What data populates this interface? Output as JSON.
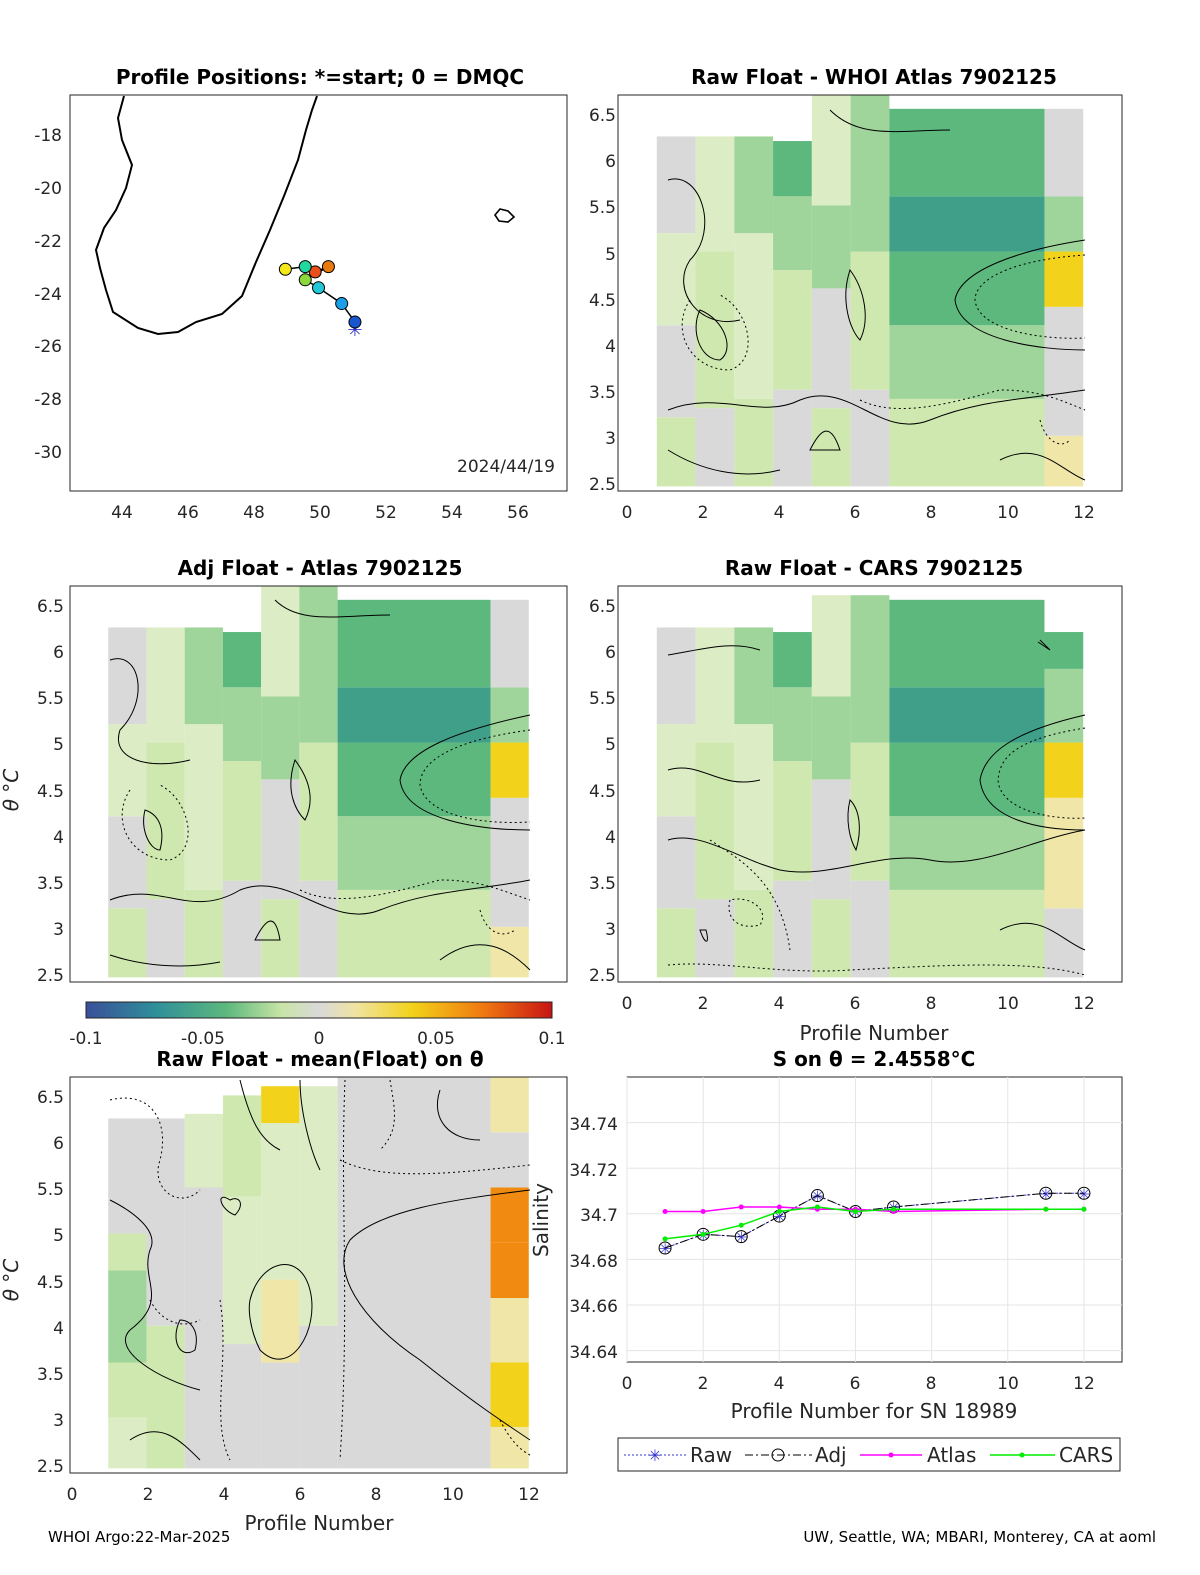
{
  "panels": {
    "map": {
      "title": "Profile Positions: *=start; 0 = DMQC",
      "date": "2024/44/19",
      "xticks": [
        "44",
        "46",
        "48",
        "50",
        "52",
        "54",
        "56"
      ],
      "yticks": [
        "-18",
        "-20",
        "-22",
        "-24",
        "-26",
        "-28",
        "-30"
      ]
    },
    "whoi": {
      "title": "Raw Float - WHOI Atlas  7902125",
      "xticks": [
        "0",
        "2",
        "4",
        "6",
        "8",
        "10",
        "12"
      ],
      "yticks": [
        "6.5",
        "6",
        "5.5",
        "5",
        "4.5",
        "4",
        "3.5",
        "3",
        "2.5"
      ]
    },
    "adj": {
      "title": "Adj Float - Atlas  7902125",
      "ylabel": "θ °C",
      "xticks": [
        "0",
        "2",
        "4",
        "6",
        "8",
        "10",
        "12"
      ],
      "yticks": [
        "6.5",
        "6",
        "5.5",
        "5",
        "4.5",
        "4",
        "3.5",
        "3",
        "2.5"
      ]
    },
    "cars": {
      "title": "Raw Float - CARS  7902125",
      "xlabel": "Profile Number",
      "xticks": [
        "0",
        "2",
        "4",
        "6",
        "8",
        "10",
        "12"
      ],
      "yticks": [
        "6.5",
        "6",
        "5.5",
        "5",
        "4.5",
        "4",
        "3.5",
        "3",
        "2.5"
      ]
    },
    "mean": {
      "title": "Raw Float - mean(Float) on θ",
      "xlabel": "Profile Number",
      "ylabel": "θ °C",
      "xticks": [
        "0",
        "2",
        "4",
        "6",
        "8",
        "10",
        "12"
      ],
      "yticks": [
        "6.5",
        "6",
        "5.5",
        "5",
        "4.5",
        "4",
        "3.5",
        "3",
        "2.5"
      ]
    },
    "sal": {
      "title": "S on θ = 2.4558°C",
      "xlabel": "Profile Number for SN 18989",
      "ylabel": "Salinity",
      "xticks": [
        "0",
        "2",
        "4",
        "6",
        "8",
        "10",
        "12"
      ],
      "yticks": [
        "34.74",
        "34.72",
        "34.7",
        "34.68",
        "34.66",
        "34.64"
      ]
    }
  },
  "colorbar": {
    "ticks": [
      "-0.1",
      "-0.05",
      "0",
      "0.05",
      "0.1"
    ]
  },
  "footer": {
    "left": "WHOI Argo:22-Mar-2025",
    "right": "UW, Seattle, WA; MBARI, Monterey, CA at aoml"
  },
  "colors": {
    "raw": "#3333cc",
    "adj": "#000000",
    "atlas": "#ff00ff",
    "cars": "#00ee00"
  },
  "chart_data": [
    {
      "type": "scatter",
      "name": "map",
      "xlim": [
        42.5,
        57.5
      ],
      "ylim": [
        -31.5,
        -16.5
      ],
      "positions": [
        {
          "lon": 51.1,
          "lat": -25.4
        },
        {
          "lon": 51.1,
          "lat": -25.1
        },
        {
          "lon": 50.7,
          "lat": -24.4
        },
        {
          "lon": 50.0,
          "lat": -23.8
        },
        {
          "lon": 49.6,
          "lat": -23.5
        },
        {
          "lon": 50.3,
          "lat": -23.0
        },
        {
          "lon": 49.9,
          "lat": -23.2
        },
        {
          "lon": 49.6,
          "lat": -23.0
        },
        {
          "lon": 49.0,
          "lat": -23.1
        }
      ]
    },
    {
      "type": "heatmap",
      "name": "salinity anomaly sections",
      "xlim": [
        0,
        13
      ],
      "ylim": [
        2.4,
        6.7
      ],
      "clim": [
        -0.1,
        0.1
      ]
    },
    {
      "type": "line",
      "name": "S on theta",
      "xlim": [
        0,
        13
      ],
      "ylim": [
        34.635,
        34.76
      ],
      "legend": "bottom",
      "series": [
        {
          "name": "Raw",
          "x": [
            1,
            2,
            3,
            4,
            5,
            6,
            7,
            11,
            12
          ],
          "values": [
            34.685,
            34.691,
            34.69,
            34.699,
            34.708,
            34.701,
            34.703,
            34.709,
            34.709
          ]
        },
        {
          "name": "Adj",
          "x": [
            1,
            2,
            3,
            4,
            5,
            6,
            7,
            11,
            12
          ],
          "values": [
            34.685,
            34.691,
            34.69,
            34.699,
            34.708,
            34.701,
            34.703,
            34.709,
            34.709
          ]
        },
        {
          "name": "Atlas",
          "x": [
            1,
            2,
            3,
            4,
            5,
            6,
            7,
            11,
            12
          ],
          "values": [
            34.701,
            34.701,
            34.703,
            34.703,
            34.702,
            34.702,
            34.701,
            34.702,
            34.702
          ]
        },
        {
          "name": "CARS",
          "x": [
            1,
            2,
            3,
            4,
            5,
            6,
            7,
            11,
            12
          ],
          "values": [
            34.689,
            34.691,
            34.695,
            34.701,
            34.703,
            34.701,
            34.702,
            34.702,
            34.702
          ]
        }
      ]
    }
  ]
}
